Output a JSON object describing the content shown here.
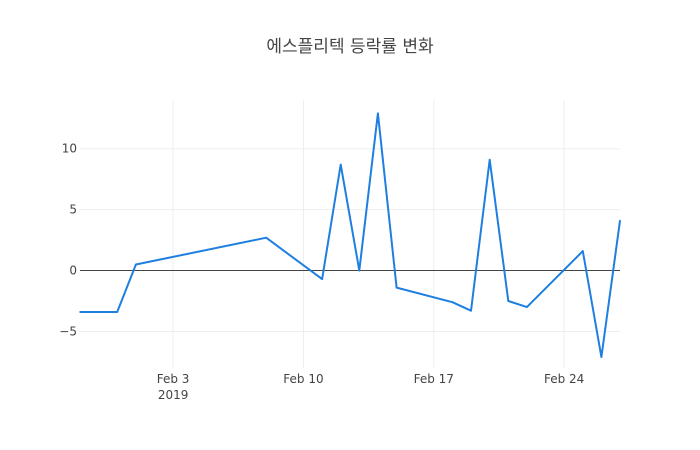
{
  "chart_data": {
    "type": "line",
    "title": "에스플리텍 등락률 변화",
    "xlabel": "",
    "ylabel": "",
    "x_range": [
      "2019-01-29",
      "2019-02-27"
    ],
    "ylim": [
      -8,
      14
    ],
    "y_ticks": [
      -5,
      0,
      5,
      10
    ],
    "y_tick_labels": [
      "−5",
      "0",
      "5",
      "10"
    ],
    "x_ticks": [
      "2019-02-03",
      "2019-02-10",
      "2019-02-17",
      "2019-02-24"
    ],
    "x_tick_labels": [
      {
        "line1": "Feb 3",
        "line2": "2019"
      },
      {
        "line1": "Feb 10",
        "line2": ""
      },
      {
        "line1": "Feb 17",
        "line2": ""
      },
      {
        "line1": "Feb 24",
        "line2": ""
      }
    ],
    "grid": true,
    "zero_line": true,
    "series": [
      {
        "color": "#1f7fe0",
        "x": [
          "2019-01-29",
          "2019-01-31",
          "2019-02-01",
          "2019-02-08",
          "2019-02-11",
          "2019-02-12",
          "2019-02-13",
          "2019-02-14",
          "2019-02-15",
          "2019-02-18",
          "2019-02-19",
          "2019-02-20",
          "2019-02-21",
          "2019-02-22",
          "2019-02-25",
          "2019-02-26",
          "2019-02-27"
        ],
        "y": [
          -3.4,
          -3.4,
          0.5,
          2.7,
          -0.7,
          8.7,
          0.0,
          12.9,
          -1.4,
          -2.6,
          -3.3,
          9.1,
          -2.5,
          -3.0,
          1.6,
          -7.1,
          4.1
        ]
      }
    ]
  }
}
